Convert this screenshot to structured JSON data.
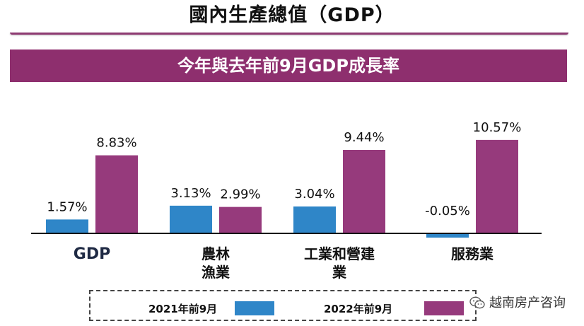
{
  "page": {
    "title": "國內生產總值（GDP）",
    "subtitle": "今年與去年前9月GDP成長率"
  },
  "chart_data": {
    "type": "bar",
    "title": "今年與去年前9月GDP成長率",
    "categories": [
      [
        "GDP"
      ],
      [
        "農林",
        "漁業"
      ],
      [
        "工業和營建",
        "業"
      ],
      [
        "服務業"
      ]
    ],
    "series": [
      {
        "name": "2021年前9月",
        "values": [
          1.57,
          3.13,
          3.04,
          -0.05
        ],
        "labels": [
          "1.57%",
          "3.13%",
          "3.04%",
          "-0.05%"
        ],
        "color": "#2f86c8"
      },
      {
        "name": "2022年前9月",
        "values": [
          8.83,
          2.99,
          9.44,
          10.57
        ],
        "labels": [
          "8.83%",
          "2.99%",
          "9.44%",
          "10.57%"
        ],
        "color": "#963a7c"
      }
    ],
    "ylim": [
      -0.5,
      11
    ],
    "grid": false,
    "legend_position": "bottom"
  },
  "legend": {
    "item1": "2021年前9月",
    "item2": "2022年前9月",
    "color1": "#2f86c8",
    "color2": "#963a7c"
  },
  "watermark": {
    "text": "越南房产咨询",
    "icon": "wechat-icon"
  }
}
